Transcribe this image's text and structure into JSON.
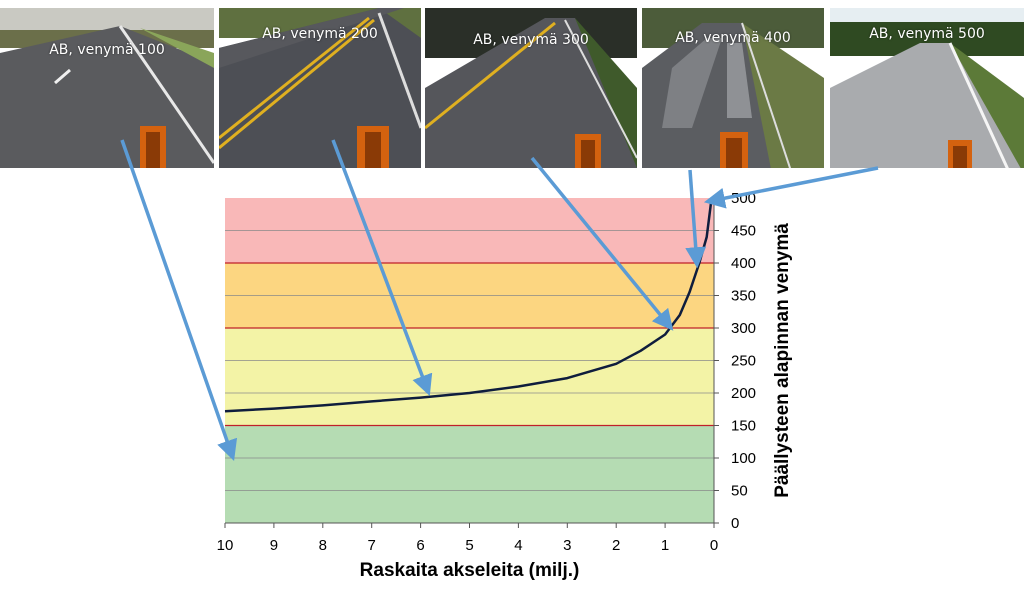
{
  "photos": [
    {
      "caption": "AB, venymä 100",
      "icon": "road-photo-icon",
      "strain": 100
    },
    {
      "caption": "AB, venymä 200",
      "icon": "road-photo-icon",
      "strain": 200
    },
    {
      "caption": "AB, venymä 300",
      "icon": "road-photo-icon",
      "strain": 300
    },
    {
      "caption": "AB, venymä 400",
      "icon": "road-photo-icon",
      "strain": 400
    },
    {
      "caption": "AB, venymä 500",
      "icon": "road-photo-icon",
      "strain": 500
    }
  ],
  "chart_data": {
    "type": "line",
    "xlabel": "Raskaita akseleita (milj.)",
    "ylabel": "Päällysteen alapinnan venymä",
    "xlim": [
      10,
      0
    ],
    "x_reversed": true,
    "ylim": [
      0,
      500
    ],
    "x_ticks": [
      10,
      9,
      8,
      7,
      6,
      5,
      4,
      3,
      2,
      1,
      0
    ],
    "y_ticks": [
      0,
      50,
      100,
      150,
      200,
      250,
      300,
      350,
      400,
      450,
      500
    ],
    "y_axis_side": "right",
    "grid": true,
    "bands": [
      {
        "from": 0,
        "to": 150,
        "color": "#b5dcb3"
      },
      {
        "from": 150,
        "to": 300,
        "color": "#f3f3a6"
      },
      {
        "from": 300,
        "to": 400,
        "color": "#fcd681"
      },
      {
        "from": 400,
        "to": 500,
        "color": "#f9b8b8"
      }
    ],
    "band_boundary_color": "#c0202a",
    "series": [
      {
        "color": "#0f1d3d",
        "x": [
          10,
          9,
          8,
          7,
          6,
          5,
          4,
          3,
          2,
          1.5,
          1,
          0.7,
          0.5,
          0.3,
          0.15,
          0.05
        ],
        "y": [
          172,
          176,
          181,
          187,
          193,
          200,
          210,
          223,
          245,
          265,
          290,
          320,
          355,
          400,
          440,
          500
        ]
      }
    ],
    "arrow_targets": [
      {
        "photo": 0,
        "x": 9.85,
        "y": 103
      },
      {
        "photo": 1,
        "x": 5.85,
        "y": 203
      },
      {
        "photo": 2,
        "x": 0.9,
        "y": 302
      },
      {
        "photo": 3,
        "x": 0.35,
        "y": 400
      },
      {
        "photo": 4,
        "x": 0.1,
        "y": 495
      }
    ],
    "arrow_color": "#5b9bd5"
  }
}
